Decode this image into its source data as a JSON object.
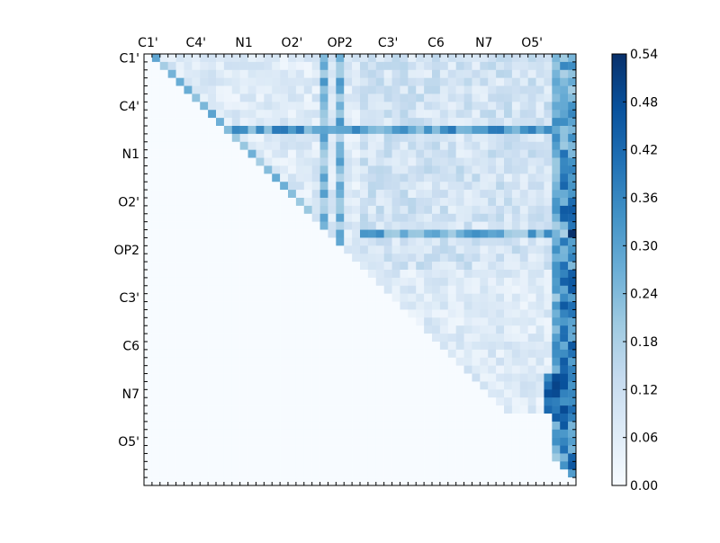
{
  "chart_data": {
    "type": "heatmap",
    "title": "",
    "xlabel": "",
    "ylabel": "",
    "n": 54,
    "tick_labels": [
      "C1'",
      "C4'",
      "N1",
      "O2'",
      "OP2",
      "C3'",
      "C6",
      "N7",
      "O5'"
    ],
    "colorbar": {
      "min": 0.0,
      "max": 0.54,
      "ticks": [
        "0.00",
        "0.06",
        "0.12",
        "0.18",
        "0.24",
        "0.30",
        "0.36",
        "0.42",
        "0.48",
        "0.54"
      ],
      "colormap": "Blues"
    },
    "grid": false,
    "legend": "none",
    "colors": {
      "low": "#f7fbff",
      "mid": "#6baed6",
      "high": "#08306b"
    }
  }
}
